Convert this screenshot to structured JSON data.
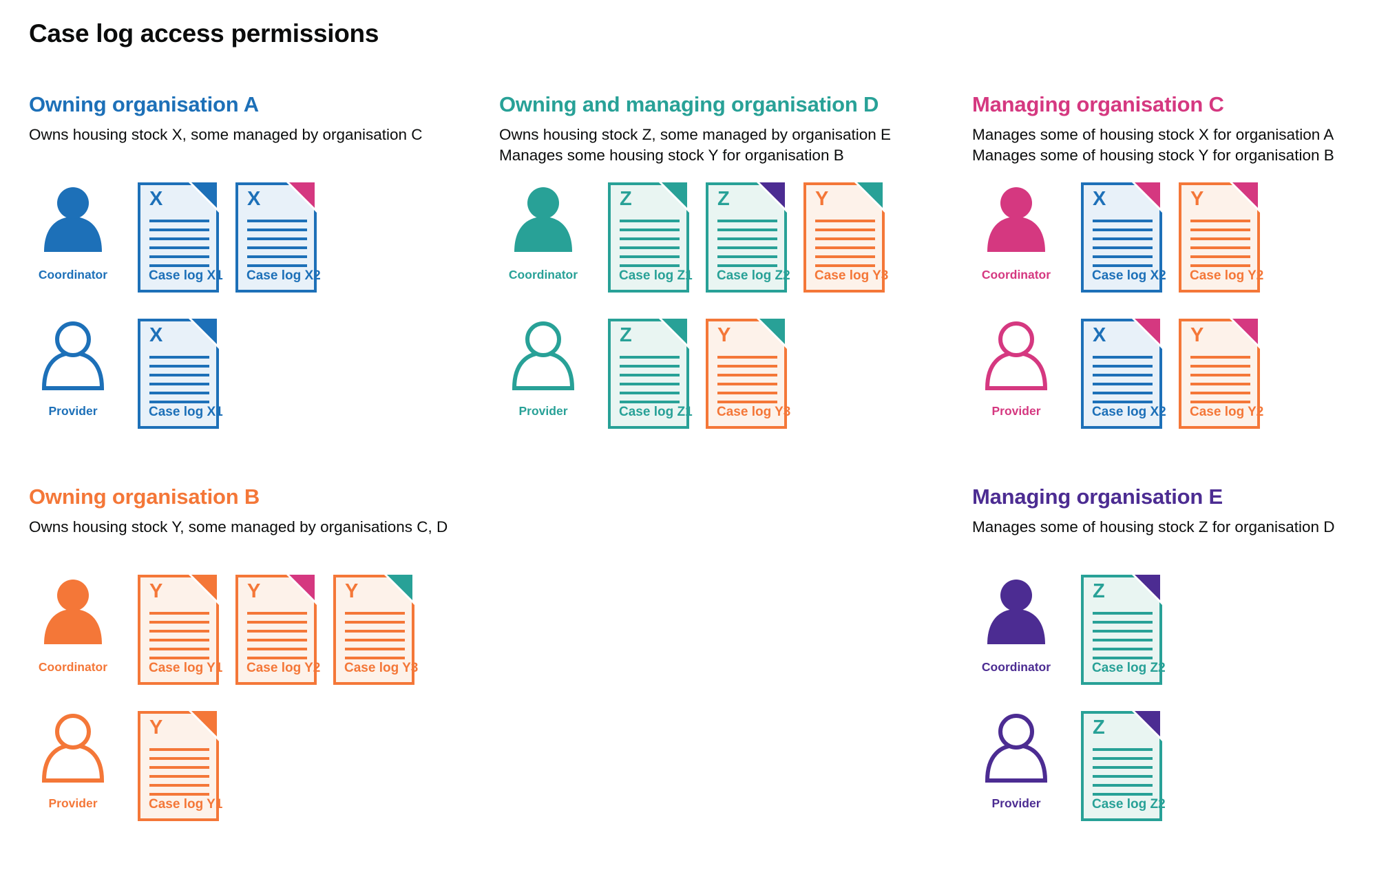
{
  "page": {
    "title": "Case log access permissions",
    "background": "#ffffff"
  },
  "colors": {
    "blue": "#1d70b8",
    "teal": "#28a197",
    "pink": "#d53880",
    "orange": "#f47738",
    "purple": "#4c2c92",
    "text": "#0b0c0c"
  },
  "doc_tints": {
    "blue": "#e8f1f9",
    "teal": "#e9f5f2",
    "orange": "#fdf2ea"
  },
  "sections": [
    {
      "id": "org-a",
      "title": "Owning organisation A",
      "color_key": "blue",
      "description_lines": [
        "Owns housing stock X, some managed by organisation C"
      ],
      "rows": [
        {
          "role": "Coordinator",
          "person_style": "filled",
          "docs": [
            {
              "letter": "X",
              "label": "Case log X1",
              "doc_color": "blue",
              "fold_color": "blue"
            },
            {
              "letter": "X",
              "label": "Case log X2",
              "doc_color": "blue",
              "fold_color": "pink"
            }
          ]
        },
        {
          "role": "Provider",
          "person_style": "outline",
          "docs": [
            {
              "letter": "X",
              "label": "Case log X1",
              "doc_color": "blue",
              "fold_color": "blue"
            }
          ]
        }
      ]
    },
    {
      "id": "org-d",
      "title": "Owning and managing organisation D",
      "color_key": "teal",
      "description_lines": [
        "Owns housing stock Z, some managed by organisation E",
        "Manages some housing stock Y for organisation B"
      ],
      "rows": [
        {
          "role": "Coordinator",
          "person_style": "filled",
          "docs": [
            {
              "letter": "Z",
              "label": "Case log Z1",
              "doc_color": "teal",
              "fold_color": "teal"
            },
            {
              "letter": "Z",
              "label": "Case log Z2",
              "doc_color": "teal",
              "fold_color": "purple"
            },
            {
              "letter": "Y",
              "label": "Case log Y3",
              "doc_color": "orange",
              "fold_color": "teal"
            }
          ]
        },
        {
          "role": "Provider",
          "person_style": "outline",
          "docs": [
            {
              "letter": "Z",
              "label": "Case log Z1",
              "doc_color": "teal",
              "fold_color": "teal"
            },
            {
              "letter": "Y",
              "label": "Case log Y3",
              "doc_color": "orange",
              "fold_color": "teal"
            }
          ]
        }
      ]
    },
    {
      "id": "org-c",
      "title": "Managing organisation C",
      "color_key": "pink",
      "description_lines": [
        "Manages some of housing stock X for organisation A",
        "Manages some of housing stock Y for organisation B"
      ],
      "rows": [
        {
          "role": "Coordinator",
          "person_style": "filled",
          "docs": [
            {
              "letter": "X",
              "label": "Case log X2",
              "doc_color": "blue",
              "fold_color": "pink"
            },
            {
              "letter": "Y",
              "label": "Case log Y2",
              "doc_color": "orange",
              "fold_color": "pink"
            }
          ]
        },
        {
          "role": "Provider",
          "person_style": "outline",
          "docs": [
            {
              "letter": "X",
              "label": "Case log X2",
              "doc_color": "blue",
              "fold_color": "pink"
            },
            {
              "letter": "Y",
              "label": "Case log Y2",
              "doc_color": "orange",
              "fold_color": "pink"
            }
          ]
        }
      ]
    },
    {
      "id": "org-b",
      "title": "Owning organisation B",
      "color_key": "orange",
      "description_lines": [
        "Owns housing stock Y, some managed by organisations C, D"
      ],
      "rows": [
        {
          "role": "Coordinator",
          "person_style": "filled",
          "docs": [
            {
              "letter": "Y",
              "label": "Case log Y1",
              "doc_color": "orange",
              "fold_color": "orange"
            },
            {
              "letter": "Y",
              "label": "Case log Y2",
              "doc_color": "orange",
              "fold_color": "pink"
            },
            {
              "letter": "Y",
              "label": "Case log Y3",
              "doc_color": "orange",
              "fold_color": "teal"
            }
          ]
        },
        {
          "role": "Provider",
          "person_style": "outline",
          "docs": [
            {
              "letter": "Y",
              "label": "Case log Y1",
              "doc_color": "orange",
              "fold_color": "orange"
            }
          ]
        }
      ]
    },
    {
      "id": "org-e",
      "title": "Managing organisation E",
      "color_key": "purple",
      "description_lines": [
        "Manages some of housing stock Z for organisation D"
      ],
      "rows": [
        {
          "role": "Coordinator",
          "person_style": "filled",
          "docs": [
            {
              "letter": "Z",
              "label": "Case log Z2",
              "doc_color": "teal",
              "fold_color": "purple"
            }
          ]
        },
        {
          "role": "Provider",
          "person_style": "outline",
          "docs": [
            {
              "letter": "Z",
              "label": "Case log Z2",
              "doc_color": "teal",
              "fold_color": "purple"
            }
          ]
        }
      ]
    }
  ]
}
